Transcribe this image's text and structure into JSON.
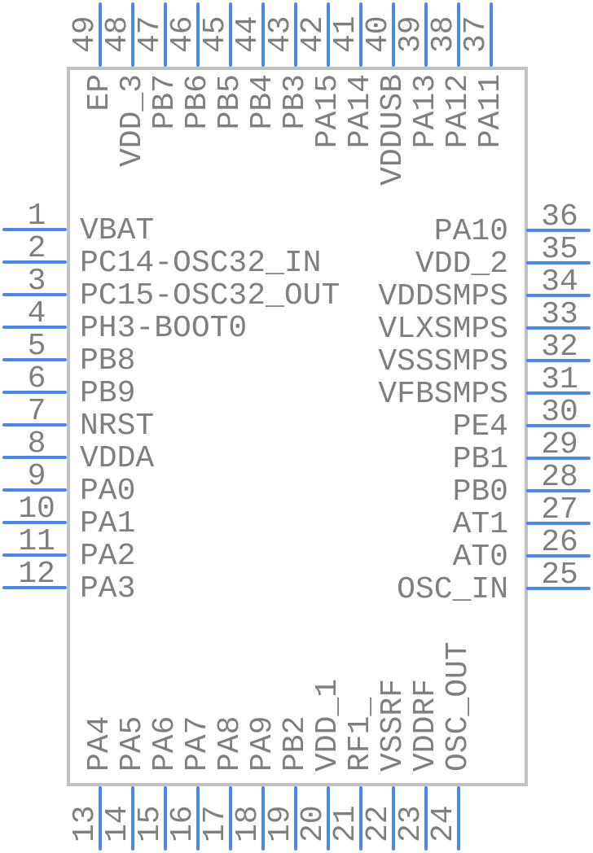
{
  "diagram": {
    "type": "ic-package-pinout",
    "pin_count_total": 49
  },
  "colors": {
    "pin_line": "#4688f4",
    "chip_border": "#c1c1c1",
    "label_text": "#7f7f7f",
    "background": "#ffffff"
  },
  "pins": {
    "top": [
      {
        "num": "49",
        "name": "EP"
      },
      {
        "num": "48",
        "name": "VDD_3"
      },
      {
        "num": "47",
        "name": "PB7"
      },
      {
        "num": "46",
        "name": "PB6"
      },
      {
        "num": "45",
        "name": "PB5"
      },
      {
        "num": "44",
        "name": "PB4"
      },
      {
        "num": "43",
        "name": "PB3"
      },
      {
        "num": "42",
        "name": "PA15"
      },
      {
        "num": "41",
        "name": "PA14"
      },
      {
        "num": "40",
        "name": "VDDUSB"
      },
      {
        "num": "39",
        "name": "PA13"
      },
      {
        "num": "38",
        "name": "PA12"
      },
      {
        "num": "37",
        "name": "PA11"
      }
    ],
    "left": [
      {
        "num": "1",
        "name": "VBAT"
      },
      {
        "num": "2",
        "name": "PC14-OSC32_IN"
      },
      {
        "num": "3",
        "name": "PC15-OSC32_OUT"
      },
      {
        "num": "4",
        "name": "PH3-BOOT0"
      },
      {
        "num": "5",
        "name": "PB8"
      },
      {
        "num": "6",
        "name": "PB9"
      },
      {
        "num": "7",
        "name": "NRST"
      },
      {
        "num": "8",
        "name": "VDDA"
      },
      {
        "num": "9",
        "name": "PA0"
      },
      {
        "num": "10",
        "name": "PA1"
      },
      {
        "num": "11",
        "name": "PA2"
      },
      {
        "num": "12",
        "name": "PA3"
      }
    ],
    "right": [
      {
        "num": "36",
        "name": "PA10"
      },
      {
        "num": "35",
        "name": "VDD_2"
      },
      {
        "num": "34",
        "name": "VDDSMPS"
      },
      {
        "num": "33",
        "name": "VLXSMPS"
      },
      {
        "num": "32",
        "name": "VSSSMPS"
      },
      {
        "num": "31",
        "name": "VFBSMPS"
      },
      {
        "num": "30",
        "name": "PE4"
      },
      {
        "num": "29",
        "name": "PB1"
      },
      {
        "num": "28",
        "name": "PB0"
      },
      {
        "num": "27",
        "name": "AT1"
      },
      {
        "num": "26",
        "name": "AT0"
      },
      {
        "num": "25",
        "name": "OSC_IN"
      }
    ],
    "bottom": [
      {
        "num": "13",
        "name": "PA4"
      },
      {
        "num": "14",
        "name": "PA5"
      },
      {
        "num": "15",
        "name": "PA6"
      },
      {
        "num": "16",
        "name": "PA7"
      },
      {
        "num": "17",
        "name": "PA8"
      },
      {
        "num": "18",
        "name": "PA9"
      },
      {
        "num": "19",
        "name": "PB2"
      },
      {
        "num": "20",
        "name": "VDD_1"
      },
      {
        "num": "21",
        "name": "RF1_"
      },
      {
        "num": "22",
        "name": "VSSRF"
      },
      {
        "num": "23",
        "name": "VDDRF"
      },
      {
        "num": "24",
        "name": "OSC_OUT"
      }
    ]
  }
}
